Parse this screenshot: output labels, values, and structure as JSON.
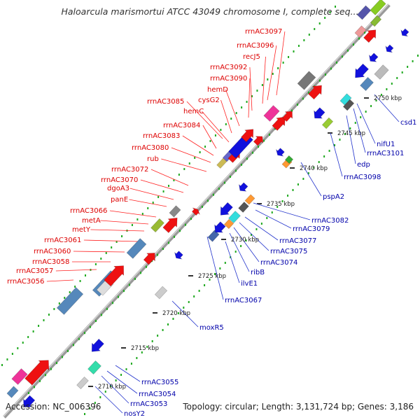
{
  "title": "Haloarcula marismortui ATCC 43049 chromosome I, complete seq...",
  "footer": {
    "accession": "Accession: NC_006396",
    "topology": "Topology: circular; Length: 3,131,724 bp; Genes: 3,186"
  },
  "ticks": [
    "2710 kbp",
    "2715 kbp",
    "2720 kbp",
    "2725 kbp",
    "2730 kbp",
    "2735 kbp",
    "2740 kbp",
    "2745 kbp",
    "2750 kbp"
  ],
  "labels_forward": [
    "rrnAC3097",
    "rrnAC3096",
    "recJ5",
    "rrnAC3092",
    "rrnAC3090",
    "hemD",
    "cysG2",
    "rrnAC3085",
    "hemC",
    "rrnAC3084",
    "rrnAC3083",
    "rrnAC3080",
    "rub",
    "rrnAC3072",
    "rrnAC3070",
    "dgoA3",
    "panE",
    "rrnAC3066",
    "metA",
    "metY",
    "rrnAC3061",
    "rrnAC3060",
    "rrnAC3058",
    "rrnAC3057",
    "rrnAC3056"
  ],
  "labels_reverse": [
    "csd1",
    "nifU1",
    "rrnAC3101",
    "edp",
    "rrnAC3098",
    "pspA2",
    "rrnAC3082",
    "rrnAC3079",
    "rrnAC3077",
    "rrnAC3075",
    "rrnAC3074",
    "ribB",
    "ilvE1",
    "rrnAC3067",
    "moxR5",
    "rrnAC3055",
    "rrnAC3054",
    "rrnAC3053",
    "nosY2"
  ],
  "colors": {
    "forward_label": "#dd0000",
    "reverse_label": "#0000aa",
    "forward_gene": "#ee1111",
    "reverse_gene": "#1111dd",
    "backbone": "#999999",
    "tick_green": "#22aa22"
  }
}
